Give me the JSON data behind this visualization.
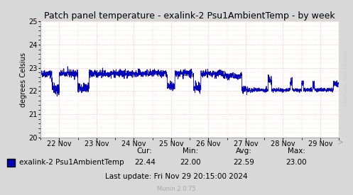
{
  "title": "Patch panel temperature - exalink-2 Psu1AmbientTemp - by week",
  "ylabel": "degrees Celsius",
  "ylim": [
    20,
    25
  ],
  "yticks": [
    20,
    21,
    22,
    23,
    24,
    25
  ],
  "xlabels": [
    "22 Nov",
    "23 Nov",
    "24 Nov",
    "25 Nov",
    "26 Nov",
    "27 Nov",
    "28 Nov",
    "29 Nov"
  ],
  "line_color": "#0000bb",
  "bg_color": "#d8d8d8",
  "plot_bg_color": "#ffffff",
  "grid_color": "#ff9999",
  "legend_label": "exalink-2 Psu1AmbientTemp",
  "legend_square_color": "#0000bb",
  "cur": "22.44",
  "min": "22.00",
  "avg": "22.59",
  "max": "23.00",
  "last_update": "Last update: Fri Nov 29 20:15:00 2024",
  "munin_version": "Munin 2.0.75",
  "rrdtool_label": "RRDTOOL/ TOBI OETIKER",
  "title_fontsize": 9,
  "axis_fontsize": 7,
  "tick_fontsize": 7,
  "legend_fontsize": 7.5
}
